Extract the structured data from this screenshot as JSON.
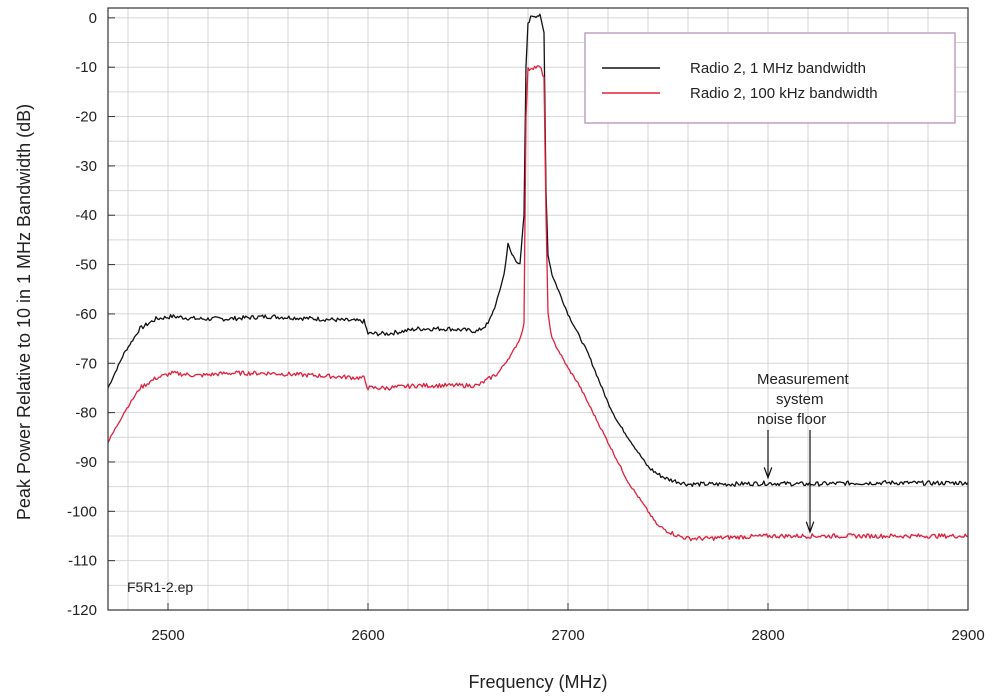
{
  "chart_data": {
    "type": "line",
    "xlabel": "Frequency (MHz)",
    "ylabel": "Peak Power Relative to 10 in 1 MHz Bandwidth (dB)",
    "xlim": [
      2470,
      2900
    ],
    "ylim": [
      -120,
      2
    ],
    "xticks": [
      2500,
      2600,
      2700,
      2800,
      2900
    ],
    "yticks": [
      0,
      -10,
      -20,
      -30,
      -40,
      -50,
      -60,
      -70,
      -80,
      -90,
      -100,
      -110,
      -120
    ],
    "grid": true,
    "legend_position": "top-right",
    "file_label": "F5R1-2.ep",
    "annotation": {
      "lines": [
        "Measurement",
        "system",
        "noise floor"
      ],
      "arrows_to": [
        {
          "x": 2800,
          "y": -94
        },
        {
          "x": 2821,
          "y": -105
        }
      ]
    },
    "series": [
      {
        "name": "Radio 2, 1 MHz bandwidth",
        "color": "#111111",
        "x": [
          2470,
          2478,
          2486,
          2494,
          2502,
          2515,
          2530,
          2550,
          2575,
          2598,
          2600,
          2610,
          2625,
          2640,
          2655,
          2660,
          2664,
          2668,
          2670,
          2672,
          2676,
          2678,
          2679,
          2680,
          2682,
          2684,
          2686,
          2688,
          2689,
          2690,
          2692,
          2696,
          2700,
          2705,
          2710,
          2715,
          2720,
          2725,
          2730,
          2735,
          2740,
          2745,
          2750,
          2755,
          2760,
          2770,
          2780,
          2800,
          2820,
          2840,
          2860,
          2880,
          2900
        ],
        "y": [
          -75,
          -68,
          -63,
          -61,
          -60.5,
          -61,
          -61,
          -60.5,
          -61,
          -61.5,
          -64,
          -64,
          -63,
          -63,
          -63.5,
          -62,
          -58,
          -52,
          -46,
          -48,
          -50,
          -40,
          -10,
          -1,
          0.5,
          0.5,
          0.5,
          -3,
          -35,
          -48,
          -52,
          -56,
          -60,
          -64,
          -68,
          -73,
          -78,
          -82,
          -85,
          -88,
          -91,
          -92.5,
          -93.5,
          -94,
          -94.5,
          -94.5,
          -94.5,
          -94.3,
          -94.5,
          -94.3,
          -94.2,
          -94.3,
          -94.2
        ]
      },
      {
        "name": "Radio 2, 100 kHz bandwidth",
        "color": "#e0203c",
        "x": [
          2470,
          2478,
          2486,
          2494,
          2502,
          2515,
          2530,
          2550,
          2575,
          2598,
          2600,
          2610,
          2625,
          2640,
          2655,
          2665,
          2672,
          2676,
          2678,
          2679,
          2680,
          2682,
          2684,
          2686,
          2688,
          2689,
          2690,
          2692,
          2696,
          2700,
          2705,
          2710,
          2715,
          2720,
          2725,
          2730,
          2735,
          2740,
          2745,
          2750,
          2755,
          2760,
          2770,
          2780,
          2800,
          2820,
          2840,
          2860,
          2880,
          2900
        ],
        "y": [
          -86,
          -80,
          -75,
          -73,
          -72,
          -72.5,
          -72,
          -72,
          -72.5,
          -73,
          -75,
          -75,
          -74.5,
          -74.5,
          -74.5,
          -72,
          -68,
          -65,
          -62,
          -20,
          -10.5,
          -10,
          -10,
          -10,
          -12,
          -40,
          -60,
          -65,
          -68,
          -71,
          -74,
          -78,
          -82,
          -86,
          -90,
          -94,
          -97,
          -100,
          -103,
          -104,
          -105,
          -105.5,
          -105.5,
          -105.3,
          -105,
          -105,
          -105,
          -105,
          -105,
          -105
        ]
      }
    ]
  }
}
